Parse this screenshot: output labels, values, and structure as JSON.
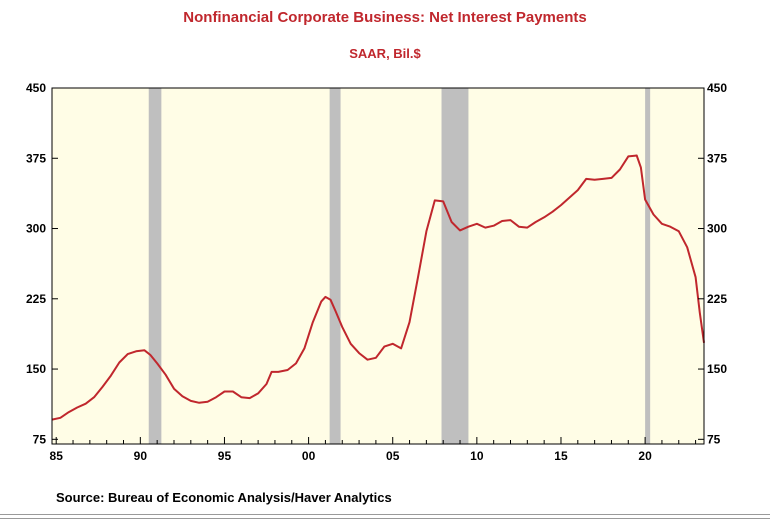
{
  "chart_data": {
    "type": "line",
    "title": "Nonfinancial Corporate Business: Net Interest Payments",
    "subtitle": "SAAR, Bil.$",
    "ylim": [
      70,
      450
    ],
    "xlim": [
      1984.75,
      2023.5
    ],
    "yticks": [
      450,
      375,
      300,
      225,
      150,
      75
    ],
    "xticks": [
      {
        "value": 1985,
        "label": "85"
      },
      {
        "value": 1990,
        "label": "90"
      },
      {
        "value": 1995,
        "label": "95"
      },
      {
        "value": 2000,
        "label": "00"
      },
      {
        "value": 2005,
        "label": "05"
      },
      {
        "value": 2010,
        "label": "10"
      },
      {
        "value": 2015,
        "label": "15"
      },
      {
        "value": 2020,
        "label": "20"
      }
    ],
    "recessions": [
      [
        1990.5,
        1991.25
      ],
      [
        2001.25,
        2001.9
      ],
      [
        2007.9,
        2009.5
      ],
      [
        2020.0,
        2020.3
      ]
    ],
    "colors": {
      "line": "#c0272d",
      "plot_bg": "#fffde6",
      "recession": "#bfbfbf"
    },
    "series": [
      {
        "x": [
          1984.75,
          1985.25,
          1985.75,
          1986.25,
          1986.75,
          1987.25,
          1987.75,
          1988.25,
          1988.75,
          1989.25,
          1989.75,
          1990.25,
          1990.6,
          1991.0,
          1991.5,
          1992.0,
          1992.5,
          1993.0,
          1993.5,
          1994.0,
          1994.5,
          1995.0,
          1995.5,
          1996.0,
          1996.5,
          1997.0,
          1997.5,
          1997.8,
          1998.2,
          1998.75,
          1999.25,
          1999.75,
          2000.25,
          2000.75,
          2001.0,
          2001.3,
          2001.6,
          2002.0,
          2002.5,
          2003.0,
          2003.5,
          2004.0,
          2004.5,
          2005.0,
          2005.5,
          2006.0,
          2006.5,
          2007.0,
          2007.5,
          2008.0,
          2008.5,
          2009.0,
          2009.5,
          2010.0,
          2010.5,
          2011.0,
          2011.5,
          2012.0,
          2012.5,
          2013.0,
          2013.5,
          2014.0,
          2014.5,
          2015.0,
          2015.5,
          2016.0,
          2016.5,
          2017.0,
          2017.5,
          2018.0,
          2018.5,
          2019.0,
          2019.5,
          2019.75,
          2020.0,
          2020.5,
          2021.0,
          2021.5,
          2022.0,
          2022.5,
          2023.0,
          2023.25,
          2023.5
        ],
        "y": [
          96,
          98,
          104,
          109,
          113,
          120,
          131,
          143,
          157,
          166,
          169,
          170,
          165,
          156,
          144,
          129,
          121,
          116,
          114,
          115,
          120,
          126,
          126,
          120,
          119,
          124,
          134,
          147,
          147,
          149,
          156,
          172,
          200,
          222,
          227,
          224,
          212,
          195,
          177,
          167,
          160,
          162,
          174,
          177,
          172,
          200,
          248,
          297,
          330,
          329,
          307,
          298,
          302,
          305,
          301,
          303,
          308,
          309,
          302,
          301,
          307,
          312,
          318,
          325,
          333,
          341,
          353,
          352,
          353,
          354,
          363,
          377,
          378,
          365,
          331,
          315,
          305,
          302,
          297,
          280,
          248,
          210,
          178
        ]
      }
    ]
  },
  "source": "Source:  Bureau of Economic Analysis/Haver Analytics"
}
